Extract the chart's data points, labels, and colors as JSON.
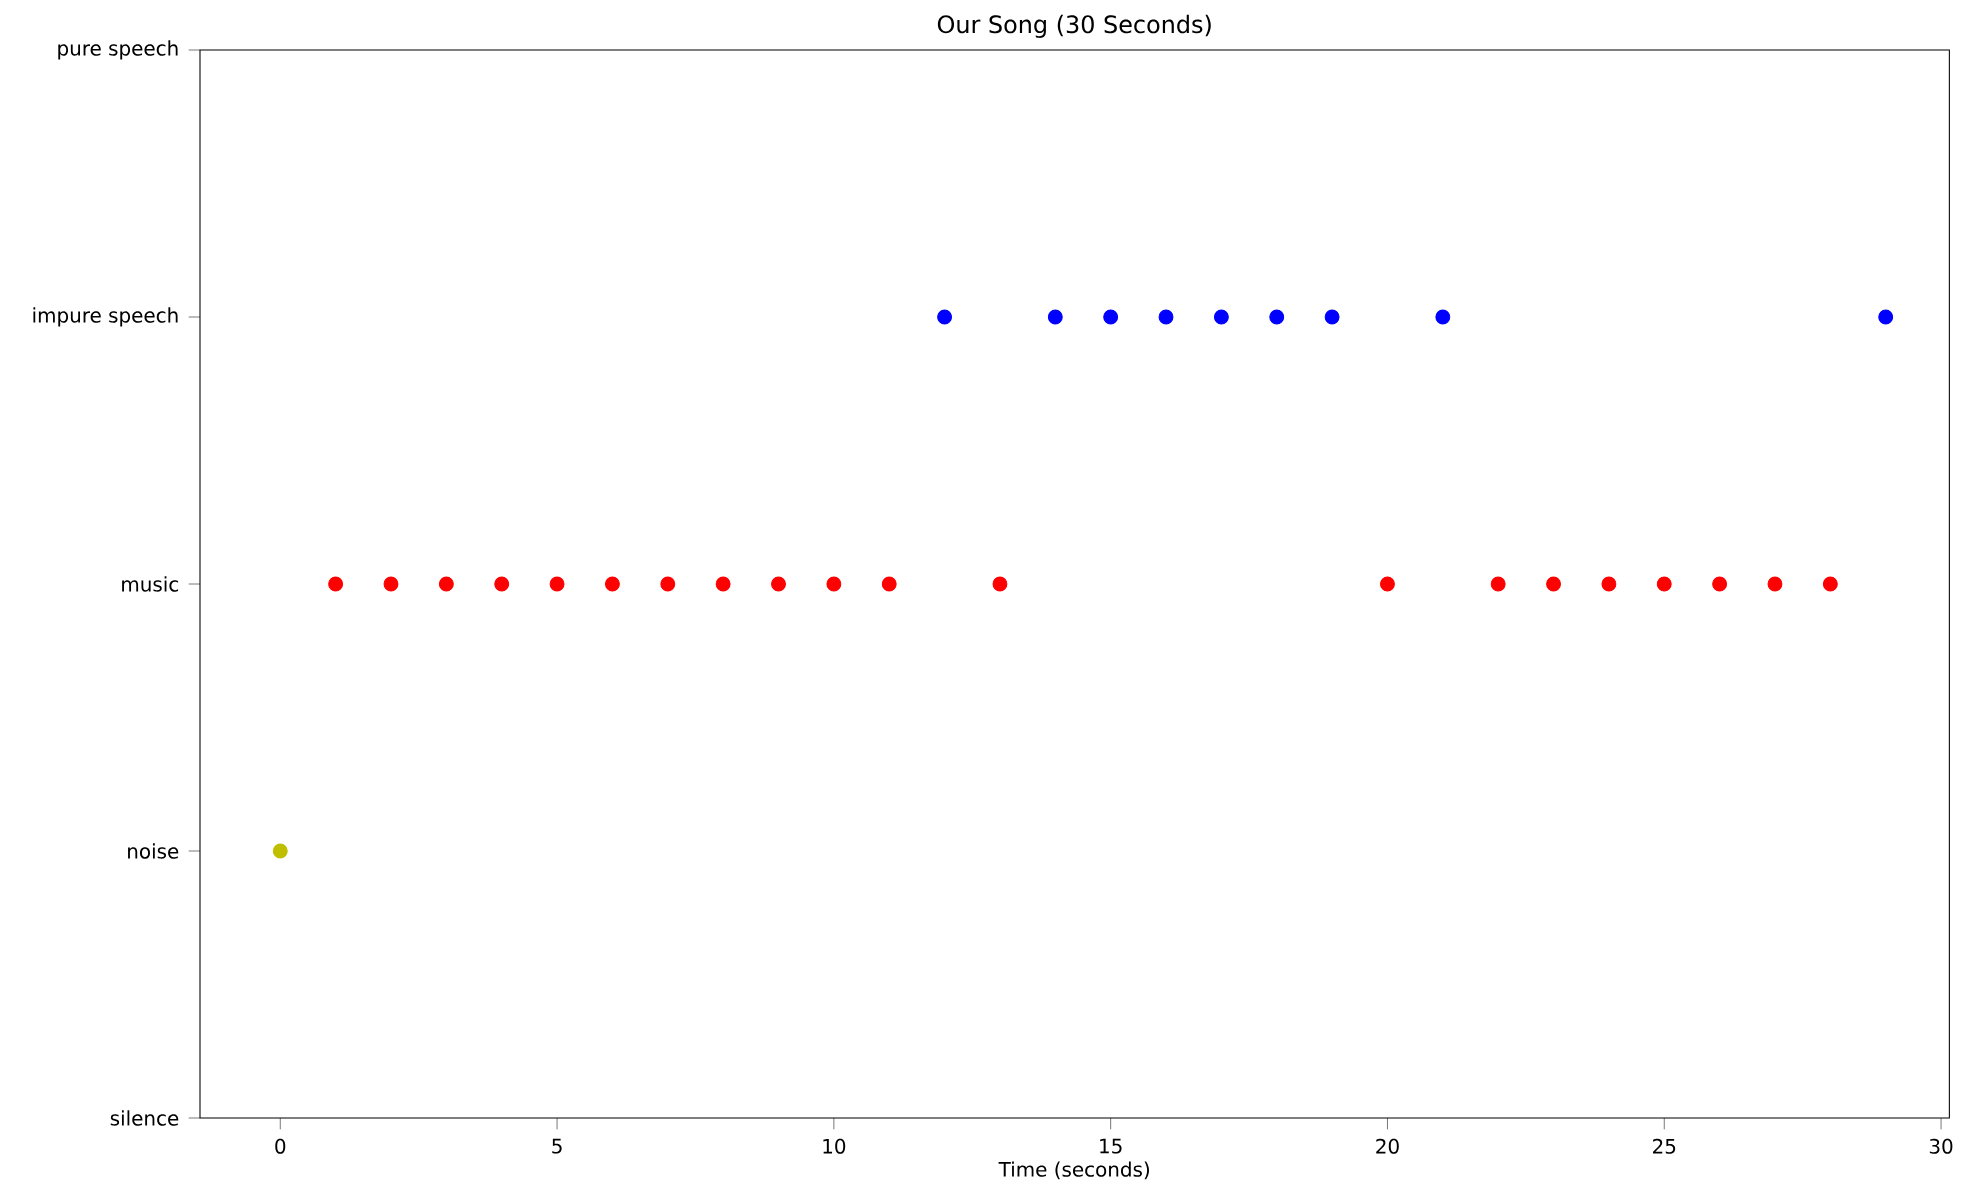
{
  "chart_data": {
    "type": "scatter",
    "title": "Our Song (30 Seconds)",
    "xlabel": "Time (seconds)",
    "orientation": "horizontal",
    "xlim": [
      -1.45,
      30.15
    ],
    "xticks": [
      0,
      5,
      10,
      15,
      20,
      25,
      30
    ],
    "categories": [
      "pure speech",
      "impure speech",
      "music",
      "noise",
      "silence"
    ],
    "marker": "circle",
    "series": [
      {
        "color": "#bfbf00",
        "x": [
          "noise"
        ],
        "values": [
          0
        ]
      },
      {
        "color": "#ff0000",
        "x": [
          "music",
          "music",
          "music",
          "music",
          "music",
          "music",
          "music",
          "music",
          "music",
          "music",
          "music",
          "music",
          "music",
          "music",
          "music",
          "music",
          "music",
          "music",
          "music",
          "music"
        ],
        "values": [
          1,
          2,
          3,
          4,
          5,
          6,
          7,
          8,
          9,
          10,
          11,
          13,
          20,
          22,
          23,
          24,
          25,
          26,
          27,
          28
        ]
      },
      {
        "color": "#0000ff",
        "x": [
          "impure speech",
          "impure speech",
          "impure speech",
          "impure speech",
          "impure speech",
          "impure speech",
          "impure speech",
          "impure speech",
          "impure speech"
        ],
        "values": [
          12,
          14,
          15,
          16,
          17,
          18,
          19,
          21,
          29
        ]
      }
    ]
  }
}
